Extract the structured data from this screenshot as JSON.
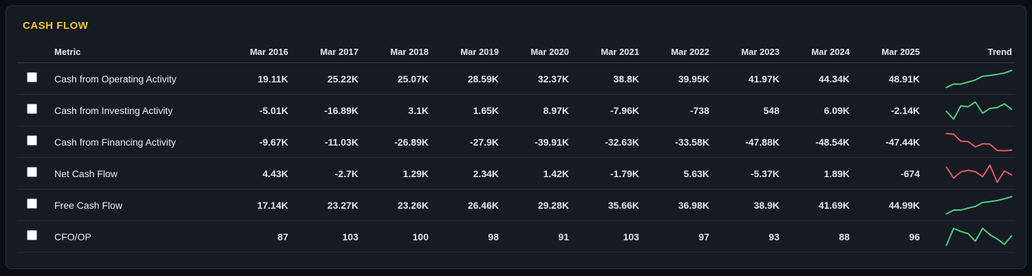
{
  "title": "CASH FLOW",
  "colors": {
    "title_accent": "#f4c430",
    "trend_up": "#4ed17e",
    "trend_down": "#e25c5c",
    "panel_bg": "#151a23",
    "page_bg": "#0b0e14",
    "row_divider": "#272d3a"
  },
  "table": {
    "metric_header": "Metric",
    "trend_header": "Trend",
    "year_headers": [
      "Mar 2016",
      "Mar 2017",
      "Mar 2018",
      "Mar 2019",
      "Mar 2020",
      "Mar 2021",
      "Mar 2022",
      "Mar 2023",
      "Mar 2024",
      "Mar 2025"
    ],
    "rows": [
      {
        "metric": "Cash from Operating Activity",
        "values": [
          "19.11K",
          "25.22K",
          "25.07K",
          "28.59K",
          "32.37K",
          "38.8K",
          "39.95K",
          "41.97K",
          "44.34K",
          "48.91K"
        ],
        "numeric": [
          19.11,
          25.22,
          25.07,
          28.59,
          32.37,
          38.8,
          39.95,
          41.97,
          44.34,
          48.91
        ],
        "trend": "up",
        "checked": false
      },
      {
        "metric": "Cash from Investing Activity",
        "values": [
          "-5.01K",
          "-16.89K",
          "3.1K",
          "1.65K",
          "8.97K",
          "-7.96K",
          "-738",
          "548",
          "6.09K",
          "-2.14K"
        ],
        "numeric": [
          -5.01,
          -16.89,
          3.1,
          1.65,
          8.97,
          -7.96,
          -0.738,
          0.548,
          6.09,
          -2.14
        ],
        "trend": "up",
        "checked": false
      },
      {
        "metric": "Cash from Financing Activity",
        "values": [
          "-9.67K",
          "-11.03K",
          "-26.89K",
          "-27.9K",
          "-39.91K",
          "-32.63K",
          "-33.58K",
          "-47.88K",
          "-48.54K",
          "-47.44K"
        ],
        "numeric": [
          -9.67,
          -11.03,
          -26.89,
          -27.9,
          -39.91,
          -32.63,
          -33.58,
          -47.88,
          -48.54,
          -47.44
        ],
        "trend": "down",
        "checked": false
      },
      {
        "metric": "Net Cash Flow",
        "values": [
          "4.43K",
          "-2.7K",
          "1.29K",
          "2.34K",
          "1.42K",
          "-1.79K",
          "5.63K",
          "-5.37K",
          "1.89K",
          "-674"
        ],
        "numeric": [
          4.43,
          -2.7,
          1.29,
          2.34,
          1.42,
          -1.79,
          5.63,
          -5.37,
          1.89,
          -0.674
        ],
        "trend": "down",
        "checked": false
      },
      {
        "metric": "Free Cash Flow",
        "values": [
          "17.14K",
          "23.27K",
          "23.26K",
          "26.46K",
          "29.28K",
          "35.66K",
          "36.98K",
          "38.9K",
          "41.69K",
          "44.99K"
        ],
        "numeric": [
          17.14,
          23.27,
          23.26,
          26.46,
          29.28,
          35.66,
          36.98,
          38.9,
          41.69,
          44.99
        ],
        "trend": "up",
        "checked": false
      },
      {
        "metric": "CFO/OP",
        "values": [
          "87",
          "103",
          "100",
          "98",
          "91",
          "103",
          "97",
          "93",
          "88",
          "96"
        ],
        "numeric": [
          87,
          103,
          100,
          98,
          91,
          103,
          97,
          93,
          88,
          96
        ],
        "trend": "up",
        "checked": false
      }
    ]
  }
}
